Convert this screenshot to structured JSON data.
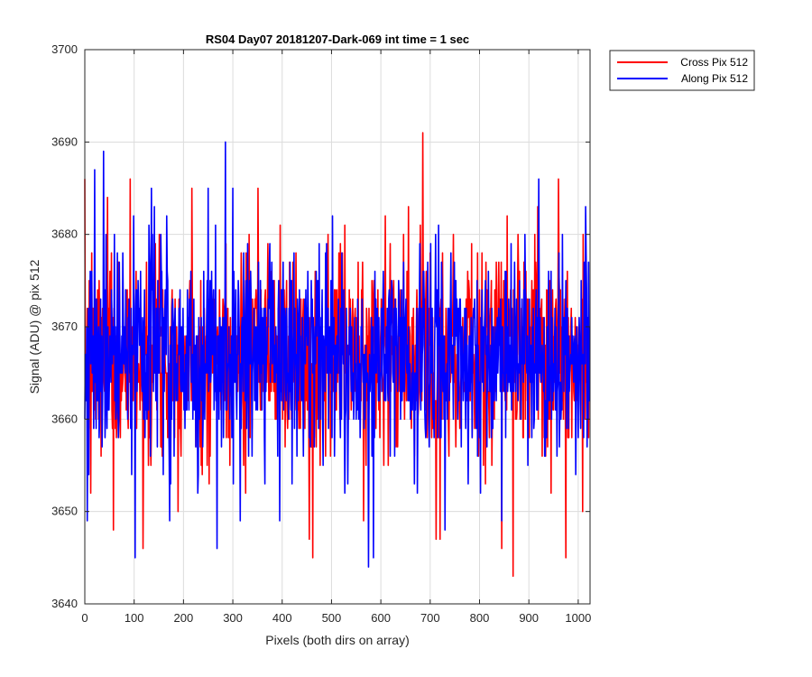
{
  "chart_data": {
    "type": "line",
    "title": "RS04 Day07 20181207-Dark-069 int time = 1 sec",
    "xlabel": "Pixels (both dirs on array)",
    "ylabel": "Signal (ADU) @ pix 512",
    "xlim": [
      0,
      1024
    ],
    "ylim": [
      3640,
      3700
    ],
    "xticks": [
      0,
      100,
      200,
      300,
      400,
      500,
      600,
      700,
      800,
      900,
      1000
    ],
    "yticks": [
      3640,
      3650,
      3660,
      3670,
      3680,
      3690,
      3700
    ],
    "grid": true,
    "legend_position": "outside-top-right",
    "noise": {
      "mean": 3667,
      "n_points": 1024
    },
    "series": [
      {
        "name": "Cross Pix 512",
        "color": "#ff0000",
        "seed": 7,
        "sigma": 5.5,
        "highlights": [
          [
            0,
            3686
          ],
          [
            12,
            3652
          ],
          [
            58,
            3648
          ],
          [
            92,
            3686
          ],
          [
            118,
            3646
          ],
          [
            326,
            3652
          ],
          [
            455,
            3647
          ],
          [
            462,
            3645
          ],
          [
            565,
            3649
          ],
          [
            568,
            3668
          ],
          [
            685,
            3691
          ],
          [
            720,
            3647
          ],
          [
            845,
            3646
          ],
          [
            868,
            3643
          ],
          [
            945,
            3652
          ],
          [
            960,
            3686
          ],
          [
            975,
            3645
          ],
          [
            1010,
            3680
          ]
        ]
      },
      {
        "name": "Along Pix 512",
        "color": "#0000ff",
        "seed": 19,
        "sigma": 6.0,
        "highlights": [
          [
            5,
            3649
          ],
          [
            20,
            3687
          ],
          [
            38,
            3689
          ],
          [
            102,
            3645
          ],
          [
            135,
            3685
          ],
          [
            172,
            3649
          ],
          [
            250,
            3685
          ],
          [
            268,
            3646
          ],
          [
            285,
            3690
          ],
          [
            300,
            3685
          ],
          [
            395,
            3649
          ],
          [
            575,
            3644
          ],
          [
            585,
            3645
          ],
          [
            730,
            3648
          ],
          [
            845,
            3649
          ],
          [
            920,
            3686
          ],
          [
            1015,
            3683
          ]
        ]
      }
    ]
  }
}
